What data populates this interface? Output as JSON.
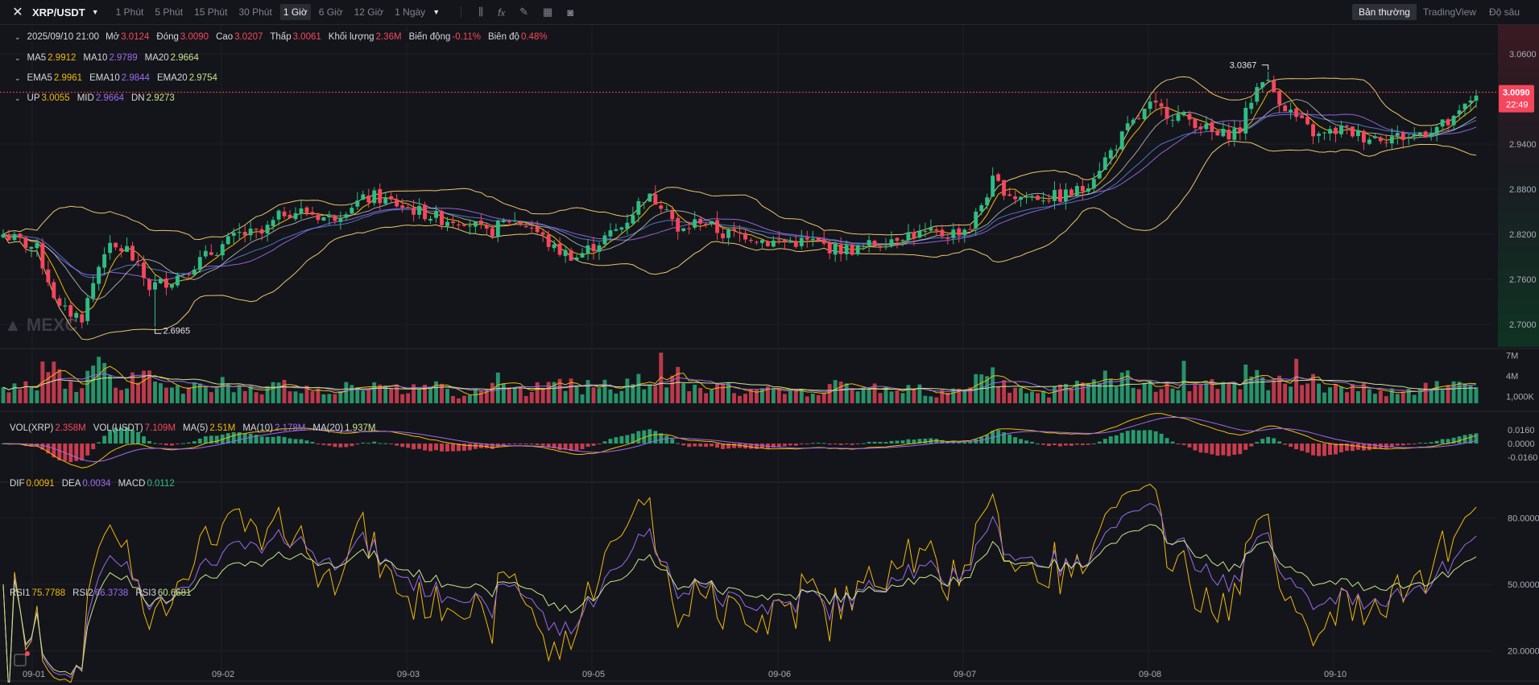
{
  "toolbar": {
    "symbol": "XRP/USDT",
    "timeframes": [
      "1 Phút",
      "5 Phút",
      "15 Phút",
      "30 Phút",
      "1 Giờ",
      "6 Giờ",
      "12 Giờ",
      "1 Ngày"
    ],
    "active_timeframe": "1 Giờ",
    "views": [
      "Bản thường",
      "TradingView",
      "Độ sâu"
    ],
    "active_view": "Bản thường"
  },
  "info": {
    "date": "2025/09/10 21:00",
    "open_label": "Mở",
    "open": "3.0124",
    "close_label": "Đóng",
    "close": "3.0090",
    "high_label": "Cao",
    "high": "3.0207",
    "low_label": "Thấp",
    "low": "3.0061",
    "vol_label": "Khối lượng",
    "vol": "2.36M",
    "change_label": "Biến động",
    "change": "-0.11%",
    "amp_label": "Biên độ",
    "amp": "0.48%"
  },
  "indicators": {
    "ma": [
      {
        "k": "MA5",
        "v": "2.9912"
      },
      {
        "k": "MA10",
        "v": "2.9789"
      },
      {
        "k": "MA20",
        "v": "2.9664"
      }
    ],
    "ema": [
      {
        "k": "EMA5",
        "v": "2.9961"
      },
      {
        "k": "EMA10",
        "v": "2.9844"
      },
      {
        "k": "EMA20",
        "v": "2.9754"
      }
    ],
    "boll": [
      {
        "k": "UP",
        "v": "3.0055"
      },
      {
        "k": "MID",
        "v": "2.9664"
      },
      {
        "k": "DN",
        "v": "2.9273"
      }
    ],
    "vol": [
      {
        "k": "VOL(XRP)",
        "v": "2.358M"
      },
      {
        "k": "VOL(USDT)",
        "v": "7.109M"
      },
      {
        "k": "MA(5)",
        "v": "2.51M"
      },
      {
        "k": "MA(10)",
        "v": "2.178M"
      },
      {
        "k": "MA(20)",
        "v": "1.937M"
      }
    ],
    "macd": [
      {
        "k": "DIF",
        "v": "0.0091"
      },
      {
        "k": "DEA",
        "v": "0.0034"
      },
      {
        "k": "MACD",
        "v": "0.0112"
      }
    ],
    "rsi": [
      {
        "k": "RSI1",
        "v": "75.7788"
      },
      {
        "k": "RSI2",
        "v": "66.3738"
      },
      {
        "k": "RSI3",
        "v": "60.6681"
      }
    ]
  },
  "colors": {
    "up": "#2ebd85",
    "down": "#f6465d",
    "ma5": "#f0b90b",
    "ma10": "#9b6cf0",
    "ma20": "#c9e58c",
    "boll": "#e8c56d",
    "blue": "#5b8def"
  },
  "watermark": "MEXC",
  "chart_data": {
    "type": "candlestick",
    "x_ticks": [
      "09-01",
      "09-02",
      "09-03",
      "09-05",
      "09-06",
      "09-07",
      "09-08",
      "09-10"
    ],
    "price_axis": [
      "3.0600",
      "2.9400",
      "2.8800",
      "2.8200",
      "2.7600",
      "2.7000"
    ],
    "price_range": [
      2.67,
      3.09
    ],
    "current_price": "3.0090",
    "countdown": "22:49",
    "high_marker": "3.0367",
    "low_marker": "2.6965",
    "anchors": [
      [
        0,
        2.82
      ],
      [
        6,
        2.8
      ],
      [
        10,
        2.72
      ],
      [
        14,
        2.71
      ],
      [
        18,
        2.8
      ],
      [
        22,
        2.8
      ],
      [
        26,
        2.75
      ],
      [
        30,
        2.76
      ],
      [
        34,
        2.78
      ],
      [
        38,
        2.8
      ],
      [
        42,
        2.82
      ],
      [
        46,
        2.82
      ],
      [
        50,
        2.85
      ],
      [
        54,
        2.85
      ],
      [
        58,
        2.84
      ],
      [
        62,
        2.86
      ],
      [
        66,
        2.87
      ],
      [
        70,
        2.86
      ],
      [
        74,
        2.85
      ],
      [
        78,
        2.84
      ],
      [
        82,
        2.84
      ],
      [
        86,
        2.82
      ],
      [
        90,
        2.84
      ],
      [
        94,
        2.83
      ],
      [
        98,
        2.8
      ],
      [
        102,
        2.79
      ],
      [
        106,
        2.81
      ],
      [
        110,
        2.83
      ],
      [
        114,
        2.87
      ],
      [
        118,
        2.86
      ],
      [
        120,
        2.82
      ],
      [
        124,
        2.84
      ],
      [
        128,
        2.82
      ],
      [
        132,
        2.82
      ],
      [
        136,
        2.81
      ],
      [
        140,
        2.81
      ],
      [
        144,
        2.81
      ],
      [
        148,
        2.8
      ],
      [
        152,
        2.8
      ],
      [
        156,
        2.81
      ],
      [
        160,
        2.82
      ],
      [
        164,
        2.82
      ],
      [
        168,
        2.82
      ],
      [
        172,
        2.83
      ],
      [
        174,
        2.86
      ],
      [
        176,
        2.89
      ],
      [
        180,
        2.87
      ],
      [
        184,
        2.87
      ],
      [
        188,
        2.87
      ],
      [
        192,
        2.88
      ],
      [
        196,
        2.92
      ],
      [
        200,
        2.96
      ],
      [
        204,
        2.99
      ],
      [
        208,
        2.98
      ],
      [
        212,
        2.97
      ],
      [
        216,
        2.95
      ],
      [
        220,
        2.96
      ],
      [
        222,
        3.0
      ],
      [
        224,
        3.03
      ],
      [
        228,
        2.99
      ],
      [
        232,
        2.96
      ],
      [
        234,
        2.95
      ],
      [
        238,
        2.96
      ],
      [
        242,
        2.95
      ],
      [
        246,
        2.95
      ],
      [
        250,
        2.95
      ],
      [
        254,
        2.96
      ],
      [
        258,
        2.97
      ],
      [
        260,
        2.99
      ],
      [
        262,
        3.009
      ]
    ],
    "vol_axis": [
      "7M",
      "4M",
      "1,000K"
    ],
    "macd_axis": [
      "0.0160",
      "0.0000",
      "-0.0160"
    ],
    "rsi_axis": [
      "80.0000",
      "50.0000",
      "20.0000"
    ]
  }
}
